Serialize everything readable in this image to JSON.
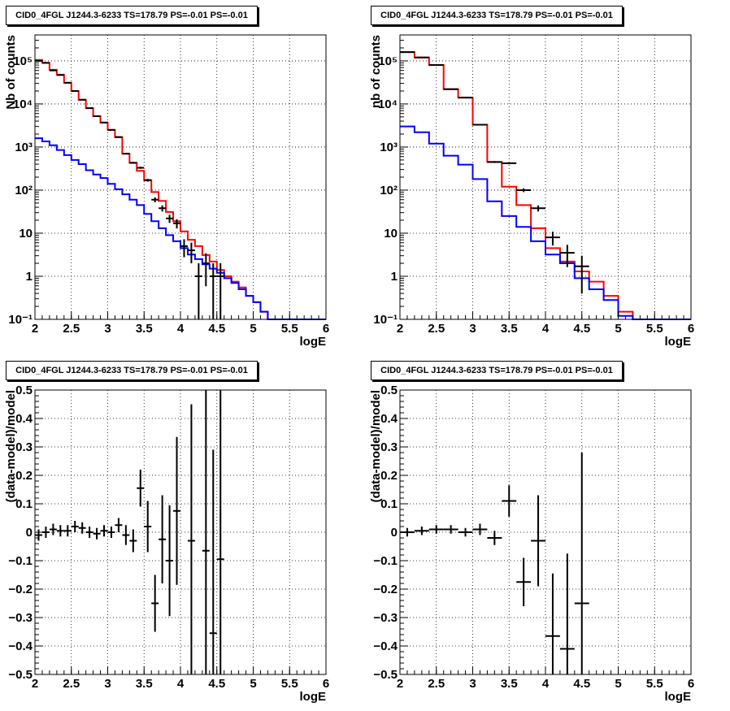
{
  "chart_data": [
    {
      "id": "top-left",
      "type": "histogram",
      "title": "CID0_4FGL J1244.3-6233 TS=178.79 PS=-0.01 PS=-0.01",
      "xlabel": "logE",
      "ylabel": "Nb of counts",
      "xlim": [
        2,
        6
      ],
      "ylim": [
        0.1,
        400000
      ],
      "yscale": "log",
      "grid": true,
      "xticks": [
        2,
        2.5,
        3,
        3.5,
        4,
        4.5,
        5,
        5.5,
        6
      ],
      "xtick_labels": [
        "2",
        "2.5",
        "3",
        "3.5",
        "4",
        "4.5",
        "5",
        "5.5",
        "6"
      ],
      "yticks": [
        0.1,
        1,
        10,
        100,
        1000,
        10000,
        100000
      ],
      "ytick_labels": [
        "10⁻¹",
        "1",
        "10",
        "10²",
        "10³",
        "10⁴",
        "10⁵"
      ],
      "bin_edges": [
        2.0,
        2.1,
        2.2,
        2.3,
        2.4,
        2.5,
        2.6,
        2.7,
        2.8,
        2.9,
        3.0,
        3.1,
        3.2,
        3.3,
        3.4,
        3.5,
        3.6,
        3.7,
        3.8,
        3.9,
        4.0,
        4.1,
        4.2,
        4.3,
        4.4,
        4.5,
        4.6,
        4.7,
        4.8,
        4.9,
        5.0,
        5.1,
        5.2,
        5.3,
        5.4,
        5.5,
        5.6,
        5.7,
        5.8,
        5.9,
        6.0
      ],
      "series": [
        {
          "role": "model-total",
          "color": "#ff0000",
          "style": "step",
          "values": [
            105000,
            90000,
            62000,
            48000,
            31000,
            20000,
            12500,
            8000,
            5200,
            3700,
            2500,
            1700,
            700,
            430,
            280,
            170,
            90,
            56,
            31,
            19,
            11,
            7,
            5,
            3.1,
            2.2,
            1.4,
            1.0,
            0.75,
            0.55,
            0.35,
            0.25,
            0.15,
            0.1,
            0.1,
            0.1,
            0.1,
            0.1,
            0.1,
            0.1,
            0.1
          ]
        },
        {
          "role": "model-component",
          "color": "#0000ff",
          "style": "step",
          "values": [
            1600,
            1350,
            1100,
            850,
            650,
            500,
            400,
            290,
            230,
            190,
            140,
            105,
            80,
            60,
            45,
            28,
            19,
            13,
            9,
            6.5,
            4.5,
            3.2,
            2.5,
            1.9,
            1.5,
            1.2,
            0.9,
            0.7,
            0.5,
            0.35,
            0.25,
            0.15,
            0.1,
            0.1,
            0.1,
            0.1,
            0.1,
            0.1,
            0.1,
            0.1
          ]
        },
        {
          "role": "data",
          "color": "#000000",
          "style": "error-points",
          "points": [
            {
              "x": 2.05,
              "y": 100000
            },
            {
              "x": 2.15,
              "y": 90000
            },
            {
              "x": 2.25,
              "y": 60000
            },
            {
              "x": 2.35,
              "y": 47000
            },
            {
              "x": 2.45,
              "y": 31000
            },
            {
              "x": 2.55,
              "y": 20000
            },
            {
              "x": 2.65,
              "y": 12500
            },
            {
              "x": 2.75,
              "y": 8000
            },
            {
              "x": 2.85,
              "y": 5200
            },
            {
              "x": 2.95,
              "y": 3700
            },
            {
              "x": 3.05,
              "y": 2500
            },
            {
              "x": 3.15,
              "y": 1700
            },
            {
              "x": 3.25,
              "y": 700
            },
            {
              "x": 3.35,
              "y": 430
            },
            {
              "x": 3.45,
              "y": 330
            },
            {
              "x": 3.55,
              "y": 170
            },
            {
              "x": 3.65,
              "y": 60
            },
            {
              "x": 3.75,
              "y": 38
            },
            {
              "x": 3.85,
              "y": 22
            },
            {
              "x": 3.95,
              "y": 17
            },
            {
              "x": 4.05,
              "y": 5
            },
            {
              "x": 4.15,
              "y": 4
            },
            {
              "x": 4.25,
              "y": 1
            },
            {
              "x": 4.35,
              "y": 2
            },
            {
              "x": 4.45,
              "y": 1
            },
            {
              "x": 4.55,
              "y": 1
            }
          ]
        }
      ]
    },
    {
      "id": "top-right",
      "type": "histogram",
      "title": "CID0_4FGL J1244.3-6233 TS=178.79 PS=-0.01 PS=-0.01",
      "xlabel": "logE",
      "ylabel": "nb of counts",
      "xlim": [
        2,
        6
      ],
      "ylim": [
        0.1,
        400000
      ],
      "yscale": "log",
      "grid": true,
      "xticks": [
        2,
        2.5,
        3,
        3.5,
        4,
        4.5,
        5,
        5.5,
        6
      ],
      "xtick_labels": [
        "2",
        "2.5",
        "3",
        "3.5",
        "4",
        "4.5",
        "5",
        "5.5",
        "6"
      ],
      "yticks": [
        0.1,
        1,
        10,
        100,
        1000,
        10000,
        100000
      ],
      "ytick_labels": [
        "10⁻¹",
        "1",
        "10",
        "10²",
        "10³",
        "10⁴",
        "10⁵"
      ],
      "bin_edges": [
        2.0,
        2.2,
        2.4,
        2.6,
        2.8,
        3.0,
        3.2,
        3.4,
        3.6,
        3.8,
        4.0,
        4.2,
        4.4,
        4.6,
        4.8,
        5.0,
        5.2,
        5.4,
        5.6,
        5.8,
        6.0
      ],
      "series": [
        {
          "role": "model-total",
          "color": "#ff0000",
          "style": "step",
          "values": [
            160000,
            120000,
            80000,
            22000,
            14000,
            3300,
            450,
            120,
            45,
            13,
            4.5,
            2.2,
            1.3,
            0.75,
            0.35,
            0.15,
            0.1,
            0.1,
            0.1,
            0.1
          ]
        },
        {
          "role": "model-component",
          "color": "#0000ff",
          "style": "step",
          "values": [
            3000,
            2200,
            1200,
            630,
            390,
            180,
            55,
            25,
            14,
            6.5,
            3.2,
            2.0,
            0.9,
            0.5,
            0.28,
            0.12,
            0.1,
            0.1,
            0.1,
            0.1
          ]
        },
        {
          "role": "data",
          "color": "#000000",
          "style": "error-points",
          "points": [
            {
              "x": 2.1,
              "y": 160000
            },
            {
              "x": 2.3,
              "y": 120000
            },
            {
              "x": 2.5,
              "y": 80000
            },
            {
              "x": 2.7,
              "y": 22000
            },
            {
              "x": 2.9,
              "y": 14000
            },
            {
              "x": 3.1,
              "y": 3300
            },
            {
              "x": 3.3,
              "y": 450
            },
            {
              "x": 3.5,
              "y": 420
            },
            {
              "x": 3.7,
              "y": 100
            },
            {
              "x": 3.9,
              "y": 38
            },
            {
              "x": 4.1,
              "y": 8
            },
            {
              "x": 4.3,
              "y": 3.5
            },
            {
              "x": 4.5,
              "y": 1.7
            }
          ]
        }
      ]
    },
    {
      "id": "bottom-left",
      "type": "scatter",
      "title": "CID0_4FGL J1244.3-6233 TS=178.79 PS=-0.01 PS=-0.01",
      "xlabel": "logE",
      "ylabel": "(data-model)/model",
      "xlim": [
        2,
        6
      ],
      "ylim": [
        -0.5,
        0.5
      ],
      "grid": true,
      "xticks": [
        2,
        2.5,
        3,
        3.5,
        4,
        4.5,
        5,
        5.5,
        6
      ],
      "xtick_labels": [
        "2",
        "2.5",
        "3",
        "3.5",
        "4",
        "4.5",
        "5",
        "5.5",
        "6"
      ],
      "yticks": [
        -0.5,
        -0.4,
        -0.3,
        -0.2,
        -0.1,
        0,
        0.1,
        0.2,
        0.3,
        0.4,
        0.5
      ],
      "ytick_labels": [
        "−0.5",
        "−0.4",
        "−0.3",
        "−0.2",
        "−0.1",
        "0",
        "0.1",
        "0.2",
        "0.3",
        "0.4",
        "0.5"
      ],
      "series": [
        {
          "role": "residuals",
          "color": "#000000",
          "style": "error-points",
          "xerr": 0.05,
          "points": [
            {
              "x": 2.05,
              "y": -0.01,
              "err": 0.02
            },
            {
              "x": 2.15,
              "y": 0.0,
              "err": 0.02
            },
            {
              "x": 2.25,
              "y": 0.01,
              "err": 0.02
            },
            {
              "x": 2.35,
              "y": 0.005,
              "err": 0.02
            },
            {
              "x": 2.45,
              "y": 0.005,
              "err": 0.02
            },
            {
              "x": 2.55,
              "y": 0.02,
              "err": 0.02
            },
            {
              "x": 2.65,
              "y": 0.015,
              "err": 0.02
            },
            {
              "x": 2.75,
              "y": 0.0,
              "err": 0.02
            },
            {
              "x": 2.85,
              "y": -0.005,
              "err": 0.02
            },
            {
              "x": 2.95,
              "y": 0.005,
              "err": 0.02
            },
            {
              "x": 3.05,
              "y": 0.0,
              "err": 0.02
            },
            {
              "x": 3.15,
              "y": 0.025,
              "err": 0.025
            },
            {
              "x": 3.25,
              "y": -0.01,
              "err": 0.035
            },
            {
              "x": 3.35,
              "y": -0.03,
              "err": 0.04
            },
            {
              "x": 3.45,
              "y": 0.155,
              "err": 0.065
            },
            {
              "x": 3.55,
              "y": 0.02,
              "err": 0.09
            },
            {
              "x": 3.65,
              "y": -0.25,
              "err": 0.1
            },
            {
              "x": 3.75,
              "y": -0.025,
              "err": 0.155
            },
            {
              "x": 3.85,
              "y": -0.1,
              "err": 0.195
            },
            {
              "x": 3.95,
              "y": 0.075,
              "err": 0.26
            },
            {
              "x": 4.15,
              "y": -0.03,
              "err": 0.48
            },
            {
              "x": 4.35,
              "y": -0.065,
              "err": 0.6
            },
            {
              "x": 4.45,
              "y": -0.355,
              "err": 0.645
            },
            {
              "x": 4.55,
              "y": -0.095,
              "err": 0.7
            }
          ]
        }
      ]
    },
    {
      "id": "bottom-right",
      "type": "scatter",
      "title": "CID0_4FGL J1244.3-6233 TS=178.79 PS=-0.01 PS=-0.01",
      "xlabel": "logE",
      "ylabel": "(data-model)/model",
      "xlim": [
        2,
        6
      ],
      "ylim": [
        -0.5,
        0.5
      ],
      "grid": true,
      "xticks": [
        2,
        2.5,
        3,
        3.5,
        4,
        4.5,
        5,
        5.5,
        6
      ],
      "xtick_labels": [
        "2",
        "2.5",
        "3",
        "3.5",
        "4",
        "4.5",
        "5",
        "5.5",
        "6"
      ],
      "yticks": [
        -0.5,
        -0.4,
        -0.3,
        -0.2,
        -0.1,
        0,
        0.1,
        0.2,
        0.3,
        0.4,
        0.5
      ],
      "ytick_labels": [
        "−0.5",
        "−0.4",
        "−0.3",
        "−0.2",
        "−0.1",
        "0",
        "0.1",
        "0.2",
        "0.3",
        "0.4",
        "0.5"
      ],
      "series": [
        {
          "role": "residuals",
          "color": "#000000",
          "style": "error-points",
          "xerr": 0.1,
          "points": [
            {
              "x": 2.1,
              "y": 0.0,
              "err": 0.015
            },
            {
              "x": 2.3,
              "y": 0.005,
              "err": 0.015
            },
            {
              "x": 2.5,
              "y": 0.01,
              "err": 0.015
            },
            {
              "x": 2.7,
              "y": 0.01,
              "err": 0.015
            },
            {
              "x": 2.9,
              "y": 0.0,
              "err": 0.015
            },
            {
              "x": 3.1,
              "y": 0.01,
              "err": 0.02
            },
            {
              "x": 3.3,
              "y": -0.02,
              "err": 0.025
            },
            {
              "x": 3.5,
              "y": 0.11,
              "err": 0.055
            },
            {
              "x": 3.7,
              "y": -0.175,
              "err": 0.085
            },
            {
              "x": 3.9,
              "y": -0.03,
              "err": 0.16
            },
            {
              "x": 4.1,
              "y": -0.365,
              "err": 0.22
            },
            {
              "x": 4.3,
              "y": -0.41,
              "err": 0.335
            },
            {
              "x": 4.5,
              "y": -0.25,
              "err": 0.53
            }
          ]
        }
      ]
    }
  ]
}
